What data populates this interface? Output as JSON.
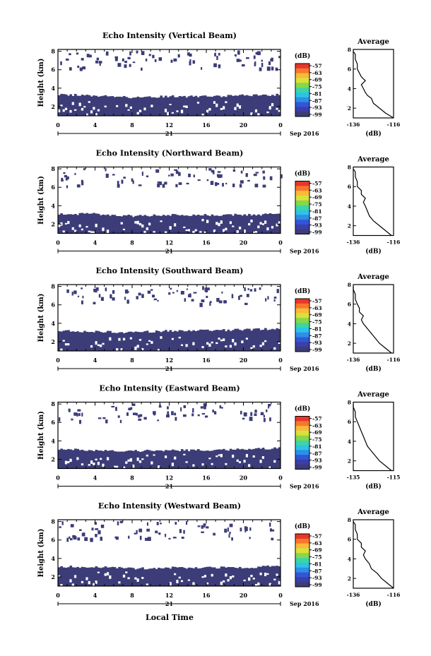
{
  "figure": {
    "xlabel": "Local Time",
    "date_label": "Sep 2016",
    "day_label": "21",
    "colorbar_unit": "(dB)",
    "colorbar_ticks": [
      "-57",
      "-63",
      "-69",
      "-75",
      "-81",
      "-87",
      "-93",
      "-99"
    ],
    "colorbar_colors": [
      "#e8362a",
      "#f7782c",
      "#f9b93a",
      "#d8e23a",
      "#8ad649",
      "#3dd6a1",
      "#2bc4e6",
      "#2f8ee8",
      "#3157d6",
      "#3b3fa8",
      "#3c3c78"
    ],
    "echo_color": "#3c3c78",
    "avg_title": "Average",
    "avg_xlabel": "(dB)"
  },
  "chart_data": [
    {
      "type": "heatmap",
      "title": "Echo Intensity (Vertical Beam)",
      "xlabel": "Local Time",
      "ylabel": "Height (km)",
      "xticks": [
        "0",
        "4",
        "8",
        "12",
        "16",
        "20",
        "0"
      ],
      "yticks": [
        "2",
        "4",
        "6",
        "8"
      ],
      "xlim": [
        0,
        24
      ],
      "ylim": [
        1,
        8.2
      ],
      "layer_top_km": [
        3.3,
        3.2,
        3.0,
        3.1,
        3.1,
        3.2,
        3.3
      ],
      "seed": 11,
      "average_profile": {
        "xlim": [
          -136,
          -116
        ],
        "xticks": [
          "-136",
          "-116"
        ],
        "ylim": [
          1,
          8
        ],
        "yticks": [
          "2",
          "4",
          "6",
          "8"
        ],
        "height_km": [
          1.0,
          1.5,
          2.0,
          2.5,
          3.0,
          3.3,
          3.6,
          4.0,
          4.4,
          4.8,
          5.2,
          5.6,
          6.0,
          6.5,
          7.0,
          7.5,
          7.8
        ],
        "value_db": [
          -116,
          -120,
          -123,
          -126,
          -127,
          -129,
          -130,
          -131,
          -132,
          -130,
          -132,
          -133,
          -134,
          -134,
          -135,
          -135,
          -136
        ]
      }
    },
    {
      "type": "heatmap",
      "title": "Echo Intensity (Northward Beam)",
      "xlabel": "Local Time",
      "ylabel": "Height (km)",
      "xticks": [
        "0",
        "4",
        "8",
        "12",
        "16",
        "20",
        "0"
      ],
      "yticks": [
        "2",
        "4",
        "6",
        "8"
      ],
      "xlim": [
        0,
        24
      ],
      "ylim": [
        1,
        8.2
      ],
      "layer_top_km": [
        3.1,
        3.1,
        2.9,
        3.0,
        3.0,
        3.0,
        3.1
      ],
      "seed": 23,
      "average_profile": {
        "xlim": [
          -136,
          -116
        ],
        "xticks": [
          "-136",
          "-116"
        ],
        "ylim": [
          1,
          8
        ],
        "yticks": [
          "2",
          "4",
          "6",
          "8"
        ],
        "height_km": [
          1.0,
          1.5,
          2.0,
          2.5,
          3.0,
          3.5,
          4.0,
          4.4,
          4.8,
          5.2,
          5.6,
          6.0,
          6.5,
          7.0,
          7.5,
          7.8
        ],
        "value_db": [
          -117,
          -120,
          -123,
          -126,
          -128,
          -129,
          -130,
          -131,
          -130,
          -132,
          -132,
          -134,
          -134,
          -135,
          -135,
          -136
        ]
      }
    },
    {
      "type": "heatmap",
      "title": "Echo Intensity (Southward Beam)",
      "xlabel": "Local Time",
      "ylabel": "Height (km)",
      "xticks": [
        "0",
        "4",
        "8",
        "12",
        "16",
        "20",
        "0"
      ],
      "yticks": [
        "2",
        "4",
        "6",
        "8"
      ],
      "xlim": [
        0,
        24
      ],
      "ylim": [
        1,
        8.2
      ],
      "layer_top_km": [
        3.2,
        3.1,
        3.0,
        3.2,
        3.2,
        3.3,
        3.4
      ],
      "seed": 37,
      "average_profile": {
        "xlim": [
          -136,
          -116
        ],
        "xticks": [
          "-136",
          "-116"
        ],
        "ylim": [
          1,
          8
        ],
        "yticks": [
          "2",
          "4",
          "6",
          "8"
        ],
        "height_km": [
          1.0,
          1.5,
          2.0,
          2.5,
          3.0,
          3.5,
          4.0,
          4.4,
          4.8,
          5.2,
          5.6,
          6.0,
          6.5,
          7.0,
          7.5,
          7.8
        ],
        "value_db": [
          -117,
          -120,
          -123,
          -125,
          -127,
          -129,
          -131,
          -132,
          -131,
          -133,
          -133,
          -134,
          -135,
          -135,
          -136,
          -136
        ]
      }
    },
    {
      "type": "heatmap",
      "title": "Echo Intensity (Eastward Beam)",
      "xlabel": "Local Time",
      "ylabel": "Height (km)",
      "xticks": [
        "0",
        "4",
        "8",
        "12",
        "16",
        "20",
        "0"
      ],
      "yticks": [
        "2",
        "4",
        "6",
        "8"
      ],
      "xlim": [
        0,
        24
      ],
      "ylim": [
        1,
        8.2
      ],
      "layer_top_km": [
        3.1,
        3.0,
        2.9,
        3.0,
        3.0,
        3.1,
        3.2
      ],
      "seed": 51,
      "average_profile": {
        "xlim": [
          -135,
          -115
        ],
        "xticks": [
          "-135",
          "-115"
        ],
        "ylim": [
          1,
          8
        ],
        "yticks": [
          "2",
          "4",
          "6",
          "8"
        ],
        "height_km": [
          1.0,
          1.5,
          2.0,
          2.5,
          3.0,
          3.5,
          4.0,
          4.5,
          5.0,
          5.5,
          6.0,
          6.5,
          7.0,
          7.5,
          7.8
        ],
        "value_db": [
          -116,
          -119,
          -122,
          -124,
          -126,
          -128,
          -129,
          -130,
          -131,
          -132,
          -133,
          -134,
          -134,
          -135,
          -135
        ]
      }
    },
    {
      "type": "heatmap",
      "title": "Echo Intensity (Westward Beam)",
      "xlabel": "Local Time",
      "ylabel": "Height (km)",
      "xticks": [
        "0",
        "4",
        "8",
        "12",
        "16",
        "20",
        "0"
      ],
      "yticks": [
        "2",
        "4",
        "6",
        "8"
      ],
      "xlim": [
        0,
        24
      ],
      "ylim": [
        1,
        8.2
      ],
      "layer_top_km": [
        3.1,
        3.1,
        2.9,
        3.0,
        3.0,
        3.0,
        3.2
      ],
      "seed": 67,
      "average_profile": {
        "xlim": [
          -136,
          -116
        ],
        "xticks": [
          "-136",
          "-116"
        ],
        "ylim": [
          1,
          8
        ],
        "yticks": [
          "2",
          "4",
          "6",
          "8"
        ],
        "height_km": [
          1.0,
          1.5,
          2.0,
          2.5,
          3.0,
          3.5,
          4.0,
          4.4,
          4.8,
          5.2,
          5.6,
          6.0,
          6.5,
          7.0,
          7.5,
          7.8
        ],
        "value_db": [
          -116,
          -119,
          -122,
          -124,
          -127,
          -128,
          -130,
          -131,
          -130,
          -132,
          -132,
          -134,
          -134,
          -135,
          -135,
          -136
        ]
      }
    }
  ]
}
